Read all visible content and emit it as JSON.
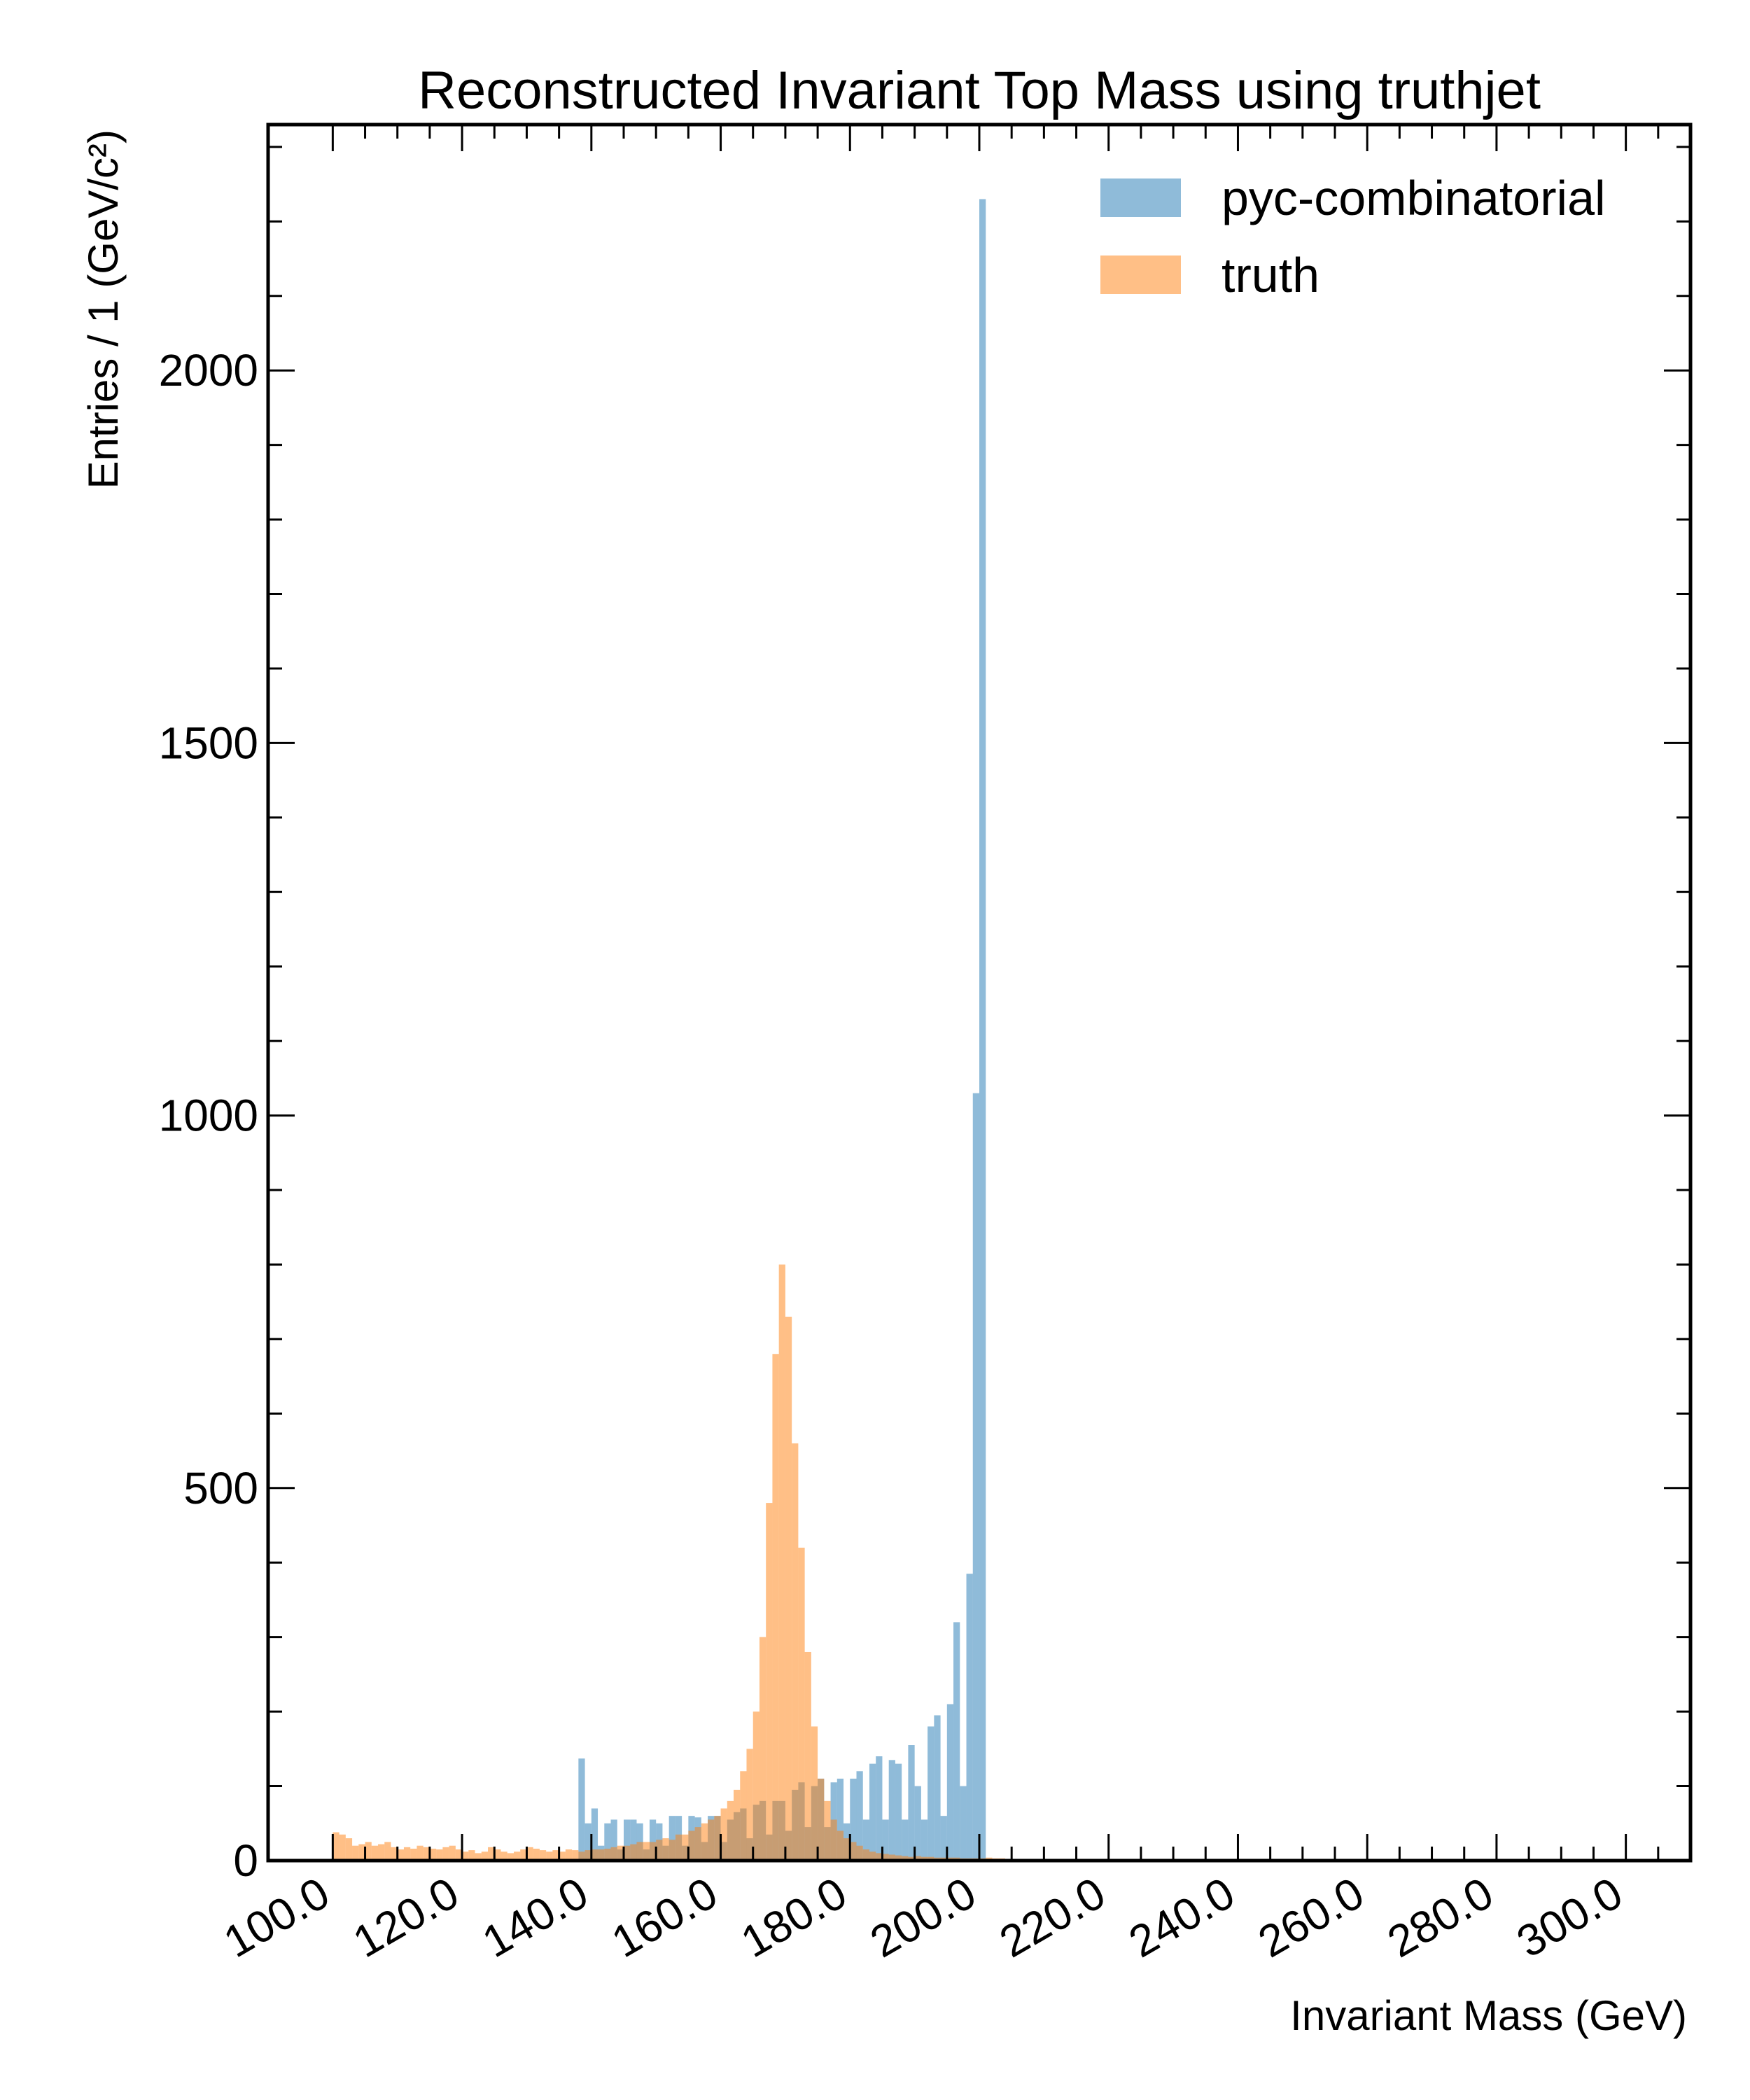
{
  "chart_data": {
    "type": "bar",
    "title": "Reconstructed Invariant Top Mass using truthjet",
    "xlabel": "Invariant Mass (GeV)",
    "ylabel": "Entries  / 1 (GeV/c²)",
    "xlim": [
      90,
      310
    ],
    "ylim": [
      0,
      2330
    ],
    "bin_width": 1,
    "x_tick_labels": [
      "100.0",
      "120.0",
      "140.0",
      "160.0",
      "180.0",
      "200.0",
      "220.0",
      "240.0",
      "260.0",
      "280.0",
      "300.0"
    ],
    "x_tick_values": [
      100,
      120,
      140,
      160,
      180,
      200,
      220,
      240,
      260,
      280,
      300
    ],
    "y_tick_labels": [
      "0",
      "500",
      "1000",
      "1500",
      "2000"
    ],
    "y_tick_values": [
      0,
      500,
      1000,
      1500,
      2000
    ],
    "legend_position": "top-right",
    "series": [
      {
        "name": "pyc-combinatorial",
        "color": "#1f77b4",
        "opacity": 0.5,
        "bins": [
          [
            138,
            137
          ],
          [
            139,
            50
          ],
          [
            140,
            70
          ],
          [
            141,
            20
          ],
          [
            142,
            50
          ],
          [
            143,
            55
          ],
          [
            144,
            15
          ],
          [
            145,
            55
          ],
          [
            146,
            55
          ],
          [
            147,
            50
          ],
          [
            148,
            15
          ],
          [
            149,
            55
          ],
          [
            150,
            50
          ],
          [
            151,
            20
          ],
          [
            152,
            60
          ],
          [
            153,
            60
          ],
          [
            154,
            20
          ],
          [
            155,
            60
          ],
          [
            156,
            58
          ],
          [
            157,
            25
          ],
          [
            158,
            60
          ],
          [
            159,
            60
          ],
          [
            160,
            25
          ],
          [
            161,
            55
          ],
          [
            162,
            65
          ],
          [
            163,
            70
          ],
          [
            164,
            30
          ],
          [
            165,
            75
          ],
          [
            166,
            80
          ],
          [
            167,
            35
          ],
          [
            168,
            80
          ],
          [
            169,
            80
          ],
          [
            170,
            40
          ],
          [
            171,
            95
          ],
          [
            172,
            105
          ],
          [
            173,
            45
          ],
          [
            174,
            100
          ],
          [
            175,
            110
          ],
          [
            176,
            45
          ],
          [
            177,
            105
          ],
          [
            178,
            110
          ],
          [
            179,
            50
          ],
          [
            180,
            110
          ],
          [
            181,
            120
          ],
          [
            182,
            55
          ],
          [
            183,
            130
          ],
          [
            184,
            140
          ],
          [
            185,
            55
          ],
          [
            186,
            135
          ],
          [
            187,
            130
          ],
          [
            188,
            55
          ],
          [
            189,
            155
          ],
          [
            190,
            100
          ],
          [
            191,
            55
          ],
          [
            192,
            180
          ],
          [
            193,
            195
          ],
          [
            194,
            60
          ],
          [
            195,
            210
          ],
          [
            196,
            320
          ],
          [
            197,
            100
          ],
          [
            198,
            385
          ],
          [
            199,
            1030
          ],
          [
            200,
            2230
          ]
        ]
      },
      {
        "name": "truth",
        "color": "#ff7f0e",
        "opacity": 0.5,
        "bins": [
          [
            100,
            38
          ],
          [
            101,
            35
          ],
          [
            102,
            30
          ],
          [
            103,
            20
          ],
          [
            104,
            22
          ],
          [
            105,
            25
          ],
          [
            106,
            20
          ],
          [
            107,
            22
          ],
          [
            108,
            25
          ],
          [
            109,
            18
          ],
          [
            110,
            15
          ],
          [
            111,
            18
          ],
          [
            112,
            16
          ],
          [
            113,
            20
          ],
          [
            114,
            18
          ],
          [
            115,
            16
          ],
          [
            116,
            15
          ],
          [
            117,
            18
          ],
          [
            118,
            20
          ],
          [
            119,
            15
          ],
          [
            120,
            12
          ],
          [
            121,
            14
          ],
          [
            122,
            10
          ],
          [
            123,
            12
          ],
          [
            124,
            18
          ],
          [
            125,
            15
          ],
          [
            126,
            12
          ],
          [
            127,
            10
          ],
          [
            128,
            12
          ],
          [
            129,
            15
          ],
          [
            130,
            18
          ],
          [
            131,
            16
          ],
          [
            132,
            14
          ],
          [
            133,
            12
          ],
          [
            134,
            14
          ],
          [
            135,
            12
          ],
          [
            136,
            15
          ],
          [
            137,
            14
          ],
          [
            138,
            12
          ],
          [
            139,
            14
          ],
          [
            140,
            15
          ],
          [
            141,
            15
          ],
          [
            142,
            16
          ],
          [
            143,
            18
          ],
          [
            144,
            20
          ],
          [
            145,
            20
          ],
          [
            146,
            22
          ],
          [
            147,
            25
          ],
          [
            148,
            25
          ],
          [
            149,
            25
          ],
          [
            150,
            28
          ],
          [
            151,
            30
          ],
          [
            152,
            28
          ],
          [
            153,
            35
          ],
          [
            154,
            35
          ],
          [
            155,
            40
          ],
          [
            156,
            45
          ],
          [
            157,
            50
          ],
          [
            158,
            55
          ],
          [
            159,
            60
          ],
          [
            160,
            70
          ],
          [
            161,
            80
          ],
          [
            162,
            95
          ],
          [
            163,
            120
          ],
          [
            164,
            150
          ],
          [
            165,
            200
          ],
          [
            166,
            300
          ],
          [
            167,
            480
          ],
          [
            168,
            680
          ],
          [
            169,
            800
          ],
          [
            170,
            730
          ],
          [
            171,
            560
          ],
          [
            172,
            420
          ],
          [
            173,
            280
          ],
          [
            174,
            180
          ],
          [
            175,
            110
          ],
          [
            176,
            80
          ],
          [
            177,
            55
          ],
          [
            178,
            40
          ],
          [
            179,
            30
          ],
          [
            180,
            25
          ],
          [
            181,
            20
          ],
          [
            182,
            15
          ],
          [
            183,
            12
          ],
          [
            184,
            10
          ],
          [
            185,
            9
          ],
          [
            186,
            8
          ],
          [
            187,
            7
          ],
          [
            188,
            6
          ],
          [
            189,
            5
          ],
          [
            190,
            6
          ],
          [
            191,
            5
          ],
          [
            192,
            5
          ],
          [
            193,
            4
          ],
          [
            194,
            4
          ],
          [
            195,
            4
          ],
          [
            196,
            4
          ],
          [
            197,
            3
          ],
          [
            198,
            3
          ],
          [
            199,
            3
          ],
          [
            200,
            3
          ],
          [
            201,
            4
          ],
          [
            202,
            3
          ],
          [
            203,
            3
          ],
          [
            204,
            2
          ],
          [
            205,
            2
          ],
          [
            206,
            2
          ],
          [
            207,
            2
          ],
          [
            208,
            2
          ],
          [
            209,
            2
          ],
          [
            210,
            2
          ],
          [
            211,
            2
          ],
          [
            212,
            2
          ],
          [
            213,
            2
          ],
          [
            214,
            2
          ],
          [
            215,
            2
          ],
          [
            216,
            2
          ],
          [
            217,
            2
          ],
          [
            218,
            2
          ],
          [
            219,
            2
          ],
          [
            220,
            2
          ],
          [
            222,
            2
          ],
          [
            224,
            2
          ],
          [
            226,
            2
          ],
          [
            228,
            2
          ],
          [
            230,
            2
          ],
          [
            232,
            2
          ],
          [
            234,
            2
          ],
          [
            236,
            2
          ],
          [
            238,
            2
          ],
          [
            240,
            2
          ]
        ]
      }
    ]
  }
}
